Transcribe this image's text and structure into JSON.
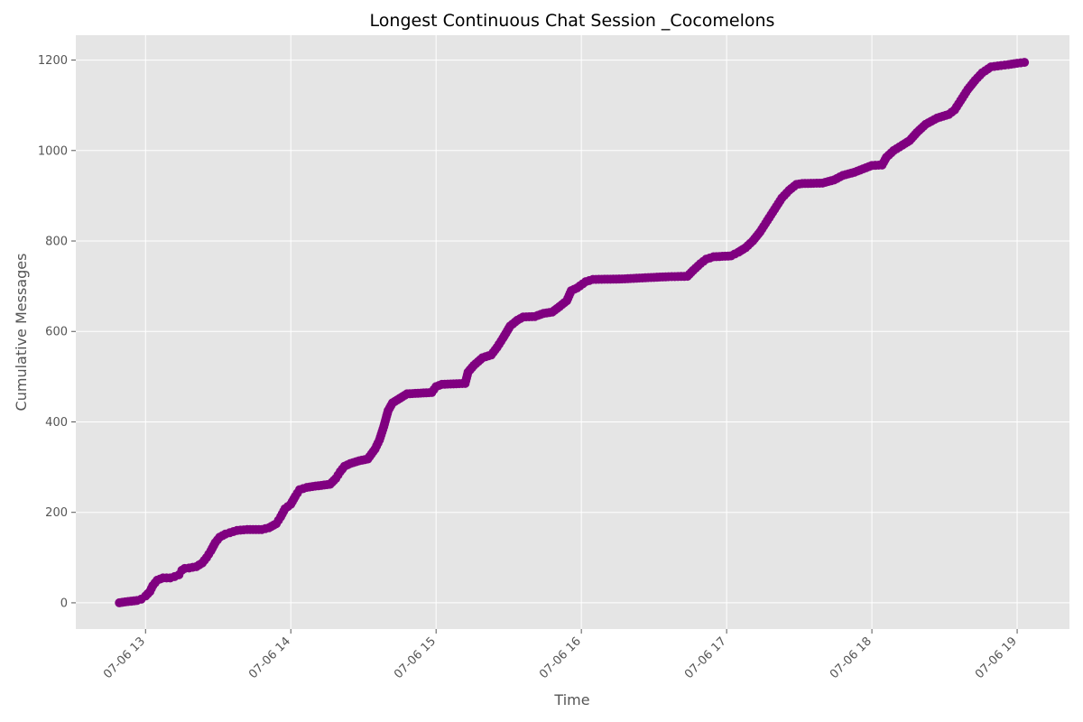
{
  "chart_data": {
    "type": "line",
    "title": "Longest Continuous Chat Session _Cocomelons",
    "xlabel": "Time",
    "ylabel": "Cumulative Messages",
    "x_tick_labels": [
      "07-06 13",
      "07-06 14",
      "07-06 15",
      "07-06 16",
      "07-06 17",
      "07-06 18",
      "07-06 19"
    ],
    "x_tick_hours": [
      13,
      14,
      15,
      16,
      17,
      18,
      19
    ],
    "y_ticks": [
      0,
      200,
      400,
      600,
      800,
      1000,
      1200
    ],
    "xlim": [
      12.52,
      19.36
    ],
    "ylim": [
      -58,
      1255
    ],
    "grid": true,
    "x_unit": "hour of 07-06",
    "series": [
      {
        "color": "#800080",
        "marker": "circle",
        "points": [
          [
            12.82,
            0
          ],
          [
            12.86,
            2
          ],
          [
            12.94,
            5
          ],
          [
            12.97,
            8
          ],
          [
            13.0,
            15
          ],
          [
            13.03,
            25
          ],
          [
            13.05,
            38
          ],
          [
            13.08,
            50
          ],
          [
            13.12,
            55
          ],
          [
            13.17,
            55
          ],
          [
            13.2,
            58
          ],
          [
            13.23,
            62
          ],
          [
            13.25,
            72
          ],
          [
            13.27,
            76
          ],
          [
            13.3,
            77
          ],
          [
            13.35,
            80
          ],
          [
            13.39,
            88
          ],
          [
            13.42,
            100
          ],
          [
            13.45,
            115
          ],
          [
            13.48,
            133
          ],
          [
            13.51,
            145
          ],
          [
            13.55,
            152
          ],
          [
            13.58,
            155
          ],
          [
            13.63,
            160
          ],
          [
            13.7,
            162
          ],
          [
            13.8,
            162
          ],
          [
            13.85,
            166
          ],
          [
            13.9,
            175
          ],
          [
            13.93,
            190
          ],
          [
            13.96,
            208
          ],
          [
            14.0,
            218
          ],
          [
            14.03,
            235
          ],
          [
            14.06,
            250
          ],
          [
            14.11,
            255
          ],
          [
            14.17,
            258
          ],
          [
            14.27,
            262
          ],
          [
            14.31,
            275
          ],
          [
            14.34,
            290
          ],
          [
            14.37,
            302
          ],
          [
            14.41,
            308
          ],
          [
            14.47,
            314
          ],
          [
            14.53,
            318
          ],
          [
            14.58,
            340
          ],
          [
            14.61,
            360
          ],
          [
            14.64,
            390
          ],
          [
            14.67,
            425
          ],
          [
            14.7,
            442
          ],
          [
            14.75,
            452
          ],
          [
            14.8,
            462
          ],
          [
            14.97,
            465
          ],
          [
            15.0,
            478
          ],
          [
            15.04,
            483
          ],
          [
            15.2,
            485
          ],
          [
            15.22,
            510
          ],
          [
            15.26,
            525
          ],
          [
            15.32,
            542
          ],
          [
            15.38,
            548
          ],
          [
            15.42,
            565
          ],
          [
            15.46,
            585
          ],
          [
            15.51,
            612
          ],
          [
            15.56,
            625
          ],
          [
            15.6,
            632
          ],
          [
            15.68,
            633
          ],
          [
            15.74,
            640
          ],
          [
            15.8,
            643
          ],
          [
            15.85,
            655
          ],
          [
            15.9,
            668
          ],
          [
            15.93,
            690
          ],
          [
            15.97,
            696
          ],
          [
            16.03,
            710
          ],
          [
            16.08,
            715
          ],
          [
            16.28,
            716
          ],
          [
            16.46,
            719
          ],
          [
            16.6,
            721
          ],
          [
            16.73,
            722
          ],
          [
            16.77,
            735
          ],
          [
            16.82,
            750
          ],
          [
            16.86,
            760
          ],
          [
            16.91,
            765
          ],
          [
            17.03,
            767
          ],
          [
            17.08,
            775
          ],
          [
            17.13,
            785
          ],
          [
            17.18,
            800
          ],
          [
            17.23,
            820
          ],
          [
            17.28,
            845
          ],
          [
            17.33,
            870
          ],
          [
            17.38,
            895
          ],
          [
            17.43,
            912
          ],
          [
            17.48,
            925
          ],
          [
            17.52,
            927
          ],
          [
            17.66,
            928
          ],
          [
            17.74,
            935
          ],
          [
            17.8,
            945
          ],
          [
            17.88,
            952
          ],
          [
            17.96,
            962
          ],
          [
            18.0,
            967
          ],
          [
            18.07,
            968
          ],
          [
            18.1,
            985
          ],
          [
            18.15,
            1000
          ],
          [
            18.21,
            1012
          ],
          [
            18.26,
            1022
          ],
          [
            18.31,
            1040
          ],
          [
            18.37,
            1058
          ],
          [
            18.45,
            1072
          ],
          [
            18.53,
            1080
          ],
          [
            18.57,
            1090
          ],
          [
            18.61,
            1110
          ],
          [
            18.66,
            1135
          ],
          [
            18.71,
            1155
          ],
          [
            18.76,
            1172
          ],
          [
            18.82,
            1185
          ],
          [
            18.89,
            1188
          ],
          [
            18.94,
            1190
          ],
          [
            19.0,
            1193
          ],
          [
            19.05,
            1195
          ]
        ]
      }
    ],
    "colors": {
      "plot_background": "#e5e5e5",
      "grid": "#ffffff",
      "series": "#800080"
    }
  }
}
